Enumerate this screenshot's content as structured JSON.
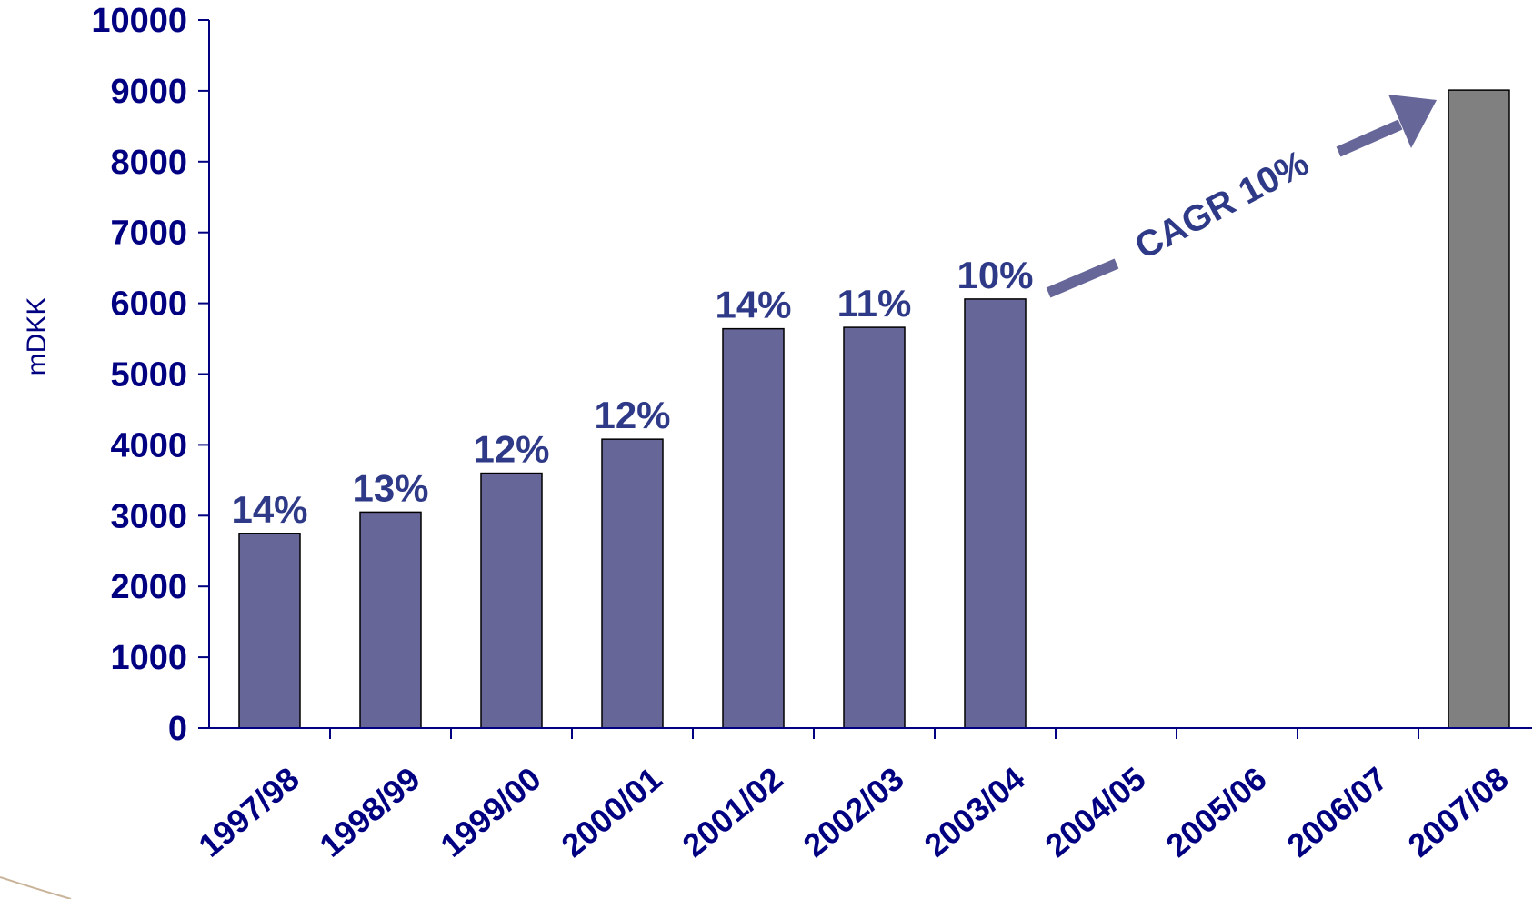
{
  "chart_data": {
    "type": "bar",
    "title": "",
    "xlabel": "",
    "ylabel": "mDKK",
    "ylim": [
      0,
      10000
    ],
    "yticks": [
      0,
      1000,
      2000,
      3000,
      4000,
      5000,
      6000,
      7000,
      8000,
      9000,
      10000
    ],
    "categories": [
      "1997/98",
      "1998/99",
      "1999/00",
      "2000/01",
      "2001/02",
      "2002/03",
      "2003/04",
      "2004/05",
      "2005/06",
      "2006/07",
      "2007/08"
    ],
    "values": [
      2750,
      3050,
      3600,
      4080,
      5640,
      5660,
      6060,
      null,
      null,
      null,
      9010
    ],
    "data_labels": [
      "14%",
      "13%",
      "12%",
      "12%",
      "14%",
      "11%",
      "10%",
      null,
      null,
      null,
      null
    ],
    "bar_colors": [
      "#666699",
      "#666699",
      "#666699",
      "#666699",
      "#666699",
      "#666699",
      "#666699",
      null,
      null,
      null,
      "#808080"
    ],
    "annotation": "CAGR 10%",
    "grid": false,
    "legend": "none"
  },
  "colors": {
    "axis_text": "#000080",
    "bar": "#666699",
    "bar_target": "#808080",
    "label_text": "#2E3A87",
    "arrow": "#666699"
  }
}
